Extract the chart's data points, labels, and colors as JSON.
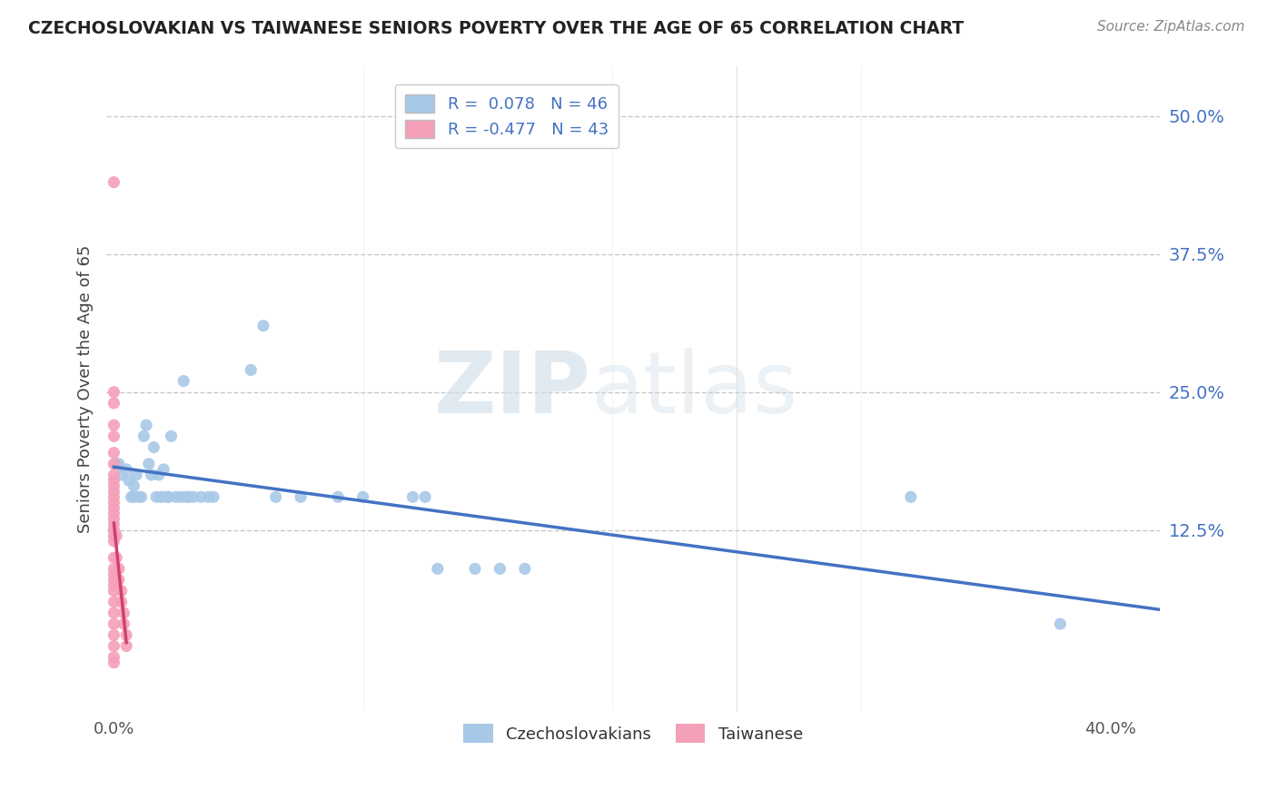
{
  "title": "CZECHOSLOVAKIAN VS TAIWANESE SENIORS POVERTY OVER THE AGE OF 65 CORRELATION CHART",
  "source": "Source: ZipAtlas.com",
  "ylabel": "Seniors Poverty Over the Age of 65",
  "y_ticks": [
    0.125,
    0.25,
    0.375,
    0.5
  ],
  "y_tick_labels": [
    "12.5%",
    "25.0%",
    "37.5%",
    "50.0%"
  ],
  "xlim": [
    -0.003,
    0.42
  ],
  "ylim": [
    -0.04,
    0.545
  ],
  "watermark_zip": "ZIP",
  "watermark_atlas": "atlas",
  "czechoslovakian_color": "#a8c8e8",
  "taiwanese_color": "#f4a0b8",
  "czechoslovakian_line_color": "#4472c4",
  "taiwanese_line_color": "#d04070",
  "background_color": "#ffffff",
  "grid_color": "#c8c8c8",
  "czechoslovakian_points": [
    [
      0.001,
      0.185
    ],
    [
      0.002,
      0.185
    ],
    [
      0.003,
      0.175
    ],
    [
      0.005,
      0.18
    ],
    [
      0.006,
      0.17
    ],
    [
      0.007,
      0.155
    ],
    [
      0.008,
      0.165
    ],
    [
      0.008,
      0.155
    ],
    [
      0.009,
      0.175
    ],
    [
      0.01,
      0.155
    ],
    [
      0.011,
      0.155
    ],
    [
      0.012,
      0.21
    ],
    [
      0.013,
      0.22
    ],
    [
      0.014,
      0.185
    ],
    [
      0.015,
      0.175
    ],
    [
      0.016,
      0.2
    ],
    [
      0.017,
      0.155
    ],
    [
      0.018,
      0.175
    ],
    [
      0.019,
      0.155
    ],
    [
      0.02,
      0.18
    ],
    [
      0.021,
      0.155
    ],
    [
      0.022,
      0.155
    ],
    [
      0.023,
      0.21
    ],
    [
      0.025,
      0.155
    ],
    [
      0.027,
      0.155
    ],
    [
      0.028,
      0.26
    ],
    [
      0.029,
      0.155
    ],
    [
      0.03,
      0.155
    ],
    [
      0.032,
      0.155
    ],
    [
      0.035,
      0.155
    ],
    [
      0.038,
      0.155
    ],
    [
      0.04,
      0.155
    ],
    [
      0.055,
      0.27
    ],
    [
      0.06,
      0.31
    ],
    [
      0.065,
      0.155
    ],
    [
      0.075,
      0.155
    ],
    [
      0.09,
      0.155
    ],
    [
      0.1,
      0.155
    ],
    [
      0.12,
      0.155
    ],
    [
      0.125,
      0.155
    ],
    [
      0.13,
      0.09
    ],
    [
      0.145,
      0.09
    ],
    [
      0.155,
      0.09
    ],
    [
      0.165,
      0.09
    ],
    [
      0.32,
      0.155
    ],
    [
      0.38,
      0.04
    ]
  ],
  "taiwanese_points": [
    [
      0.0,
      0.44
    ],
    [
      0.0,
      0.25
    ],
    [
      0.0,
      0.24
    ],
    [
      0.0,
      0.22
    ],
    [
      0.0,
      0.21
    ],
    [
      0.0,
      0.195
    ],
    [
      0.0,
      0.185
    ],
    [
      0.0,
      0.175
    ],
    [
      0.0,
      0.17
    ],
    [
      0.0,
      0.165
    ],
    [
      0.0,
      0.16
    ],
    [
      0.0,
      0.155
    ],
    [
      0.0,
      0.15
    ],
    [
      0.0,
      0.145
    ],
    [
      0.0,
      0.14
    ],
    [
      0.0,
      0.135
    ],
    [
      0.0,
      0.13
    ],
    [
      0.0,
      0.125
    ],
    [
      0.0,
      0.12
    ],
    [
      0.0,
      0.115
    ],
    [
      0.0,
      0.1
    ],
    [
      0.0,
      0.09
    ],
    [
      0.0,
      0.085
    ],
    [
      0.0,
      0.08
    ],
    [
      0.0,
      0.075
    ],
    [
      0.0,
      0.07
    ],
    [
      0.0,
      0.06
    ],
    [
      0.0,
      0.05
    ],
    [
      0.0,
      0.04
    ],
    [
      0.0,
      0.03
    ],
    [
      0.0,
      0.02
    ],
    [
      0.0,
      0.01
    ],
    [
      0.0,
      0.005
    ],
    [
      0.001,
      0.12
    ],
    [
      0.001,
      0.1
    ],
    [
      0.002,
      0.09
    ],
    [
      0.002,
      0.08
    ],
    [
      0.003,
      0.07
    ],
    [
      0.003,
      0.06
    ],
    [
      0.004,
      0.05
    ],
    [
      0.004,
      0.04
    ],
    [
      0.005,
      0.03
    ],
    [
      0.005,
      0.02
    ]
  ]
}
